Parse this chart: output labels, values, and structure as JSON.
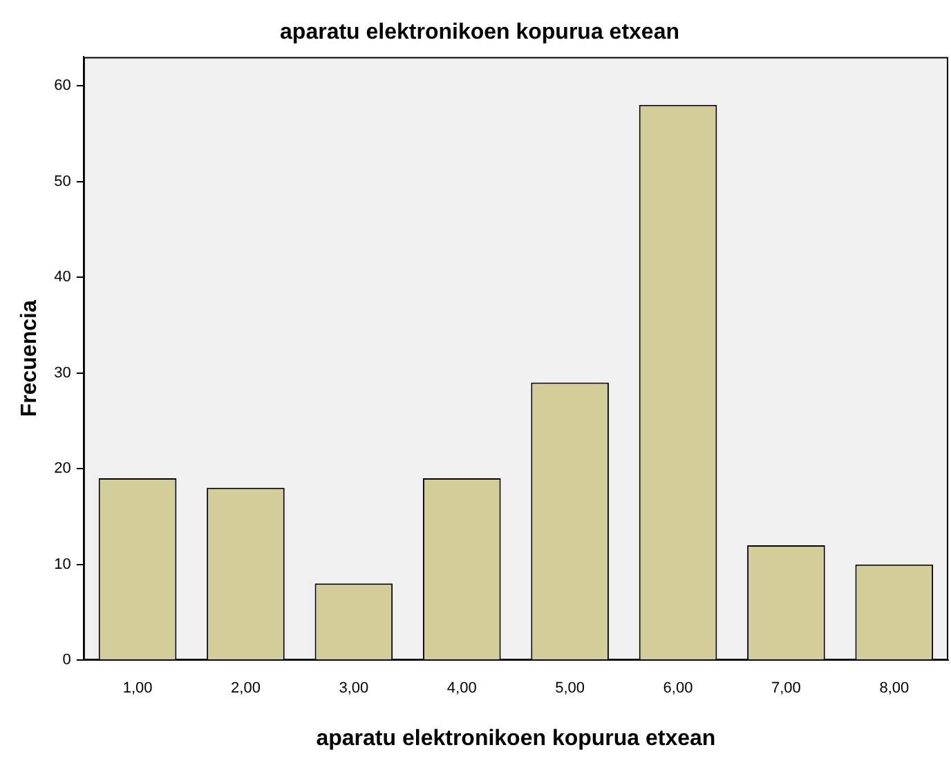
{
  "chart_data": {
    "type": "bar",
    "title": "aparatu elektronikoen kopurua etxean",
    "xlabel": "aparatu elektronikoen kopurua etxean",
    "ylabel": "Frecuencia",
    "categories": [
      "1,00",
      "2,00",
      "3,00",
      "4,00",
      "5,00",
      "6,00",
      "7,00",
      "8,00"
    ],
    "values": [
      19,
      18,
      8,
      19,
      29,
      58,
      12,
      10
    ],
    "color": "#d3ce98",
    "ylim": [
      0,
      63
    ],
    "yticks": [
      0,
      10,
      20,
      30,
      40,
      50,
      60
    ],
    "grid": false,
    "legend": false
  }
}
